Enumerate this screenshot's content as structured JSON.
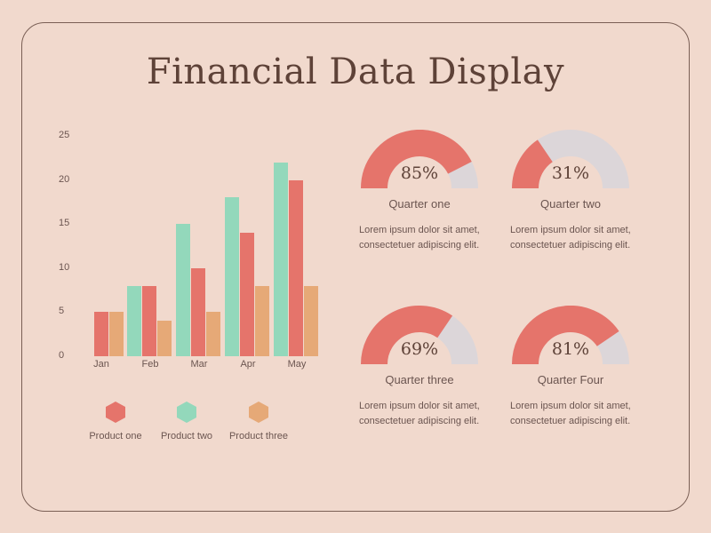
{
  "title": "Financial Data Display",
  "colors": {
    "background": "#f1d9cd",
    "frame_border": "#7a5f55",
    "product_one": "#e5746b",
    "product_two": "#93d8bb",
    "product_three": "#e6a977",
    "gauge_fill": "#e5746b",
    "gauge_track": "#dcd6d9"
  },
  "chart_data": {
    "type": "bar",
    "title": "",
    "xlabel": "",
    "ylabel": "",
    "categories": [
      "Jan",
      "Feb",
      "Mar",
      "Apr",
      "May"
    ],
    "series": [
      {
        "name": "Product one",
        "color": "#e5746b",
        "values": [
          5,
          8,
          10,
          14,
          20
        ]
      },
      {
        "name": "Product two",
        "color": "#93d8bb",
        "values": [
          0,
          8,
          15,
          18,
          22
        ]
      },
      {
        "name": "Product three",
        "color": "#e6a977",
        "values": [
          5,
          4,
          5,
          8,
          8
        ]
      }
    ],
    "yticks": [
      0,
      5,
      10,
      15,
      20,
      25
    ],
    "ylim": [
      0,
      25
    ],
    "grid": false,
    "legend_position": "bottom"
  },
  "legend": [
    {
      "label": "Product one",
      "color": "#e5746b"
    },
    {
      "label": "Product two",
      "color": "#93d8bb"
    },
    {
      "label": "Product three",
      "color": "#e6a977"
    }
  ],
  "gauges": [
    {
      "percent_label": "85%",
      "value": 85,
      "label": "Quarter one",
      "description": "Lorem ipsum dolor sit amet, consectetuer adipiscing elit."
    },
    {
      "percent_label": "31%",
      "value": 31,
      "label": "Quarter two",
      "description": "Lorem ipsum dolor sit amet, consectetuer adipiscing elit."
    },
    {
      "percent_label": "69%",
      "value": 69,
      "label": "Quarter three",
      "description": "Lorem ipsum dolor sit amet, consectetuer adipiscing elit."
    },
    {
      "percent_label": "81%",
      "value": 81,
      "label": "Quarter Four",
      "description": "Lorem ipsum dolor sit amet, consectetuer adipiscing elit."
    }
  ]
}
